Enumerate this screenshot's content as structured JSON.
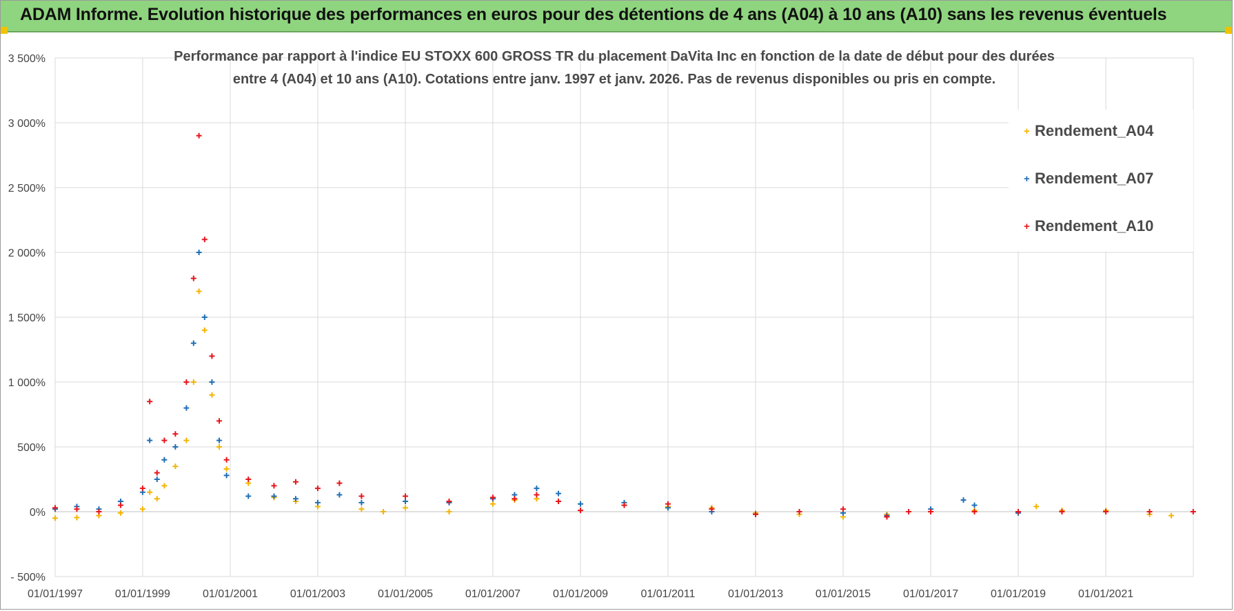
{
  "banner": {
    "title": "ADAM Informe. Evolution historique des performances en euros pour des détentions de 4 ans (A04) à 10 ans (A10) sans les revenus éventuels"
  },
  "chart_data": {
    "type": "scatter",
    "title_line1": "Performance par rapport à l'indice EU STOXX 600 GROSS TR  du placement DaVita Inc en fonction de la date de début pour des durées",
    "title_line2": "entre 4 (A04) et 10 ans (A10).  Cotations entre janv. 1997 et janv. 2026. Pas de revenus disponibles ou pris en compte.",
    "xlabel": "",
    "ylabel": "",
    "x_ticks": [
      "01/01/1997",
      "01/01/1999",
      "01/01/2001",
      "01/01/2003",
      "01/01/2005",
      "01/01/2007",
      "01/01/2009",
      "01/01/2011",
      "01/01/2013",
      "01/01/2015",
      "01/01/2017",
      "01/01/2019",
      "01/01/2021"
    ],
    "x_range": [
      "1997-01-01",
      "2023-01-01"
    ],
    "y_ticks": [
      "3 500%",
      "3 000%",
      "2 500%",
      "2 000%",
      "1 500%",
      "1 000%",
      "500%",
      "0%",
      "- 500%"
    ],
    "ylim": [
      -500,
      3500
    ],
    "grid": true,
    "legend_position": "top-right",
    "marker": "+",
    "series": [
      {
        "name": "Rendement_A04",
        "color": "#f5b400",
        "points": [
          [
            "1997-01-01",
            -50
          ],
          [
            "1997-07-01",
            -45
          ],
          [
            "1998-01-01",
            -30
          ],
          [
            "1998-07-01",
            -10
          ],
          [
            "1999-01-01",
            20
          ],
          [
            "1999-03-01",
            150
          ],
          [
            "1999-05-01",
            100
          ],
          [
            "1999-07-01",
            200
          ],
          [
            "1999-10-01",
            350
          ],
          [
            "2000-01-01",
            550
          ],
          [
            "2000-03-01",
            1000
          ],
          [
            "2000-04-15",
            1700
          ],
          [
            "2000-06-01",
            1400
          ],
          [
            "2000-08-01",
            900
          ],
          [
            "2000-10-01",
            500
          ],
          [
            "2000-12-01",
            330
          ],
          [
            "2001-06-01",
            220
          ],
          [
            "2002-01-01",
            110
          ],
          [
            "2002-07-01",
            80
          ],
          [
            "2003-01-01",
            40
          ],
          [
            "2004-01-01",
            20
          ],
          [
            "2004-07-01",
            0
          ],
          [
            "2005-01-01",
            30
          ],
          [
            "2006-01-01",
            0
          ],
          [
            "2007-01-01",
            60
          ],
          [
            "2007-07-01",
            90
          ],
          [
            "2008-01-01",
            100
          ],
          [
            "2008-07-01",
            80
          ],
          [
            "2009-01-01",
            60
          ],
          [
            "2010-01-01",
            50
          ],
          [
            "2011-01-01",
            40
          ],
          [
            "2012-01-01",
            30
          ],
          [
            "2013-01-01",
            -10
          ],
          [
            "2014-01-01",
            -20
          ],
          [
            "2015-01-01",
            -40
          ],
          [
            "2016-01-01",
            -20
          ],
          [
            "2017-01-01",
            0
          ],
          [
            "2018-01-01",
            10
          ],
          [
            "2019-01-01",
            0
          ],
          [
            "2019-06-01",
            40
          ],
          [
            "2020-01-01",
            10
          ],
          [
            "2021-01-01",
            10
          ],
          [
            "2022-01-01",
            -20
          ],
          [
            "2022-07-01",
            -30
          ]
        ]
      },
      {
        "name": "Rendement_A07",
        "color": "#1f6fb5",
        "points": [
          [
            "1997-01-01",
            20
          ],
          [
            "1997-07-01",
            40
          ],
          [
            "1998-01-01",
            20
          ],
          [
            "1998-07-01",
            80
          ],
          [
            "1999-01-01",
            150
          ],
          [
            "1999-03-01",
            550
          ],
          [
            "1999-05-01",
            250
          ],
          [
            "1999-07-01",
            400
          ],
          [
            "1999-10-01",
            500
          ],
          [
            "2000-01-01",
            800
          ],
          [
            "2000-03-01",
            1300
          ],
          [
            "2000-04-15",
            2000
          ],
          [
            "2000-06-01",
            1500
          ],
          [
            "2000-08-01",
            1000
          ],
          [
            "2000-10-01",
            550
          ],
          [
            "2000-12-01",
            280
          ],
          [
            "2001-06-01",
            120
          ],
          [
            "2002-01-01",
            120
          ],
          [
            "2002-07-01",
            100
          ],
          [
            "2003-01-01",
            70
          ],
          [
            "2003-07-01",
            130
          ],
          [
            "2004-01-01",
            70
          ],
          [
            "2005-01-01",
            80
          ],
          [
            "2006-01-01",
            70
          ],
          [
            "2007-01-01",
            100
          ],
          [
            "2007-07-01",
            130
          ],
          [
            "2008-01-01",
            180
          ],
          [
            "2008-07-01",
            140
          ],
          [
            "2009-01-01",
            60
          ],
          [
            "2010-01-01",
            70
          ],
          [
            "2011-01-01",
            30
          ],
          [
            "2012-01-01",
            0
          ],
          [
            "2013-01-01",
            -20
          ],
          [
            "2014-01-01",
            0
          ],
          [
            "2015-01-01",
            -10
          ],
          [
            "2016-01-01",
            -30
          ],
          [
            "2017-01-01",
            20
          ],
          [
            "2017-10-01",
            90
          ],
          [
            "2018-01-01",
            50
          ],
          [
            "2019-01-01",
            -10
          ],
          [
            "2020-01-01",
            0
          ]
        ]
      },
      {
        "name": "Rendement_A10",
        "color": "#e8151b",
        "points": [
          [
            "1997-01-01",
            30
          ],
          [
            "1997-07-01",
            20
          ],
          [
            "1998-01-01",
            0
          ],
          [
            "1998-07-01",
            50
          ],
          [
            "1999-01-01",
            180
          ],
          [
            "1999-03-01",
            850
          ],
          [
            "1999-05-01",
            300
          ],
          [
            "1999-07-01",
            550
          ],
          [
            "1999-10-01",
            600
          ],
          [
            "2000-01-01",
            1000
          ],
          [
            "2000-03-01",
            1800
          ],
          [
            "2000-04-15",
            2900
          ],
          [
            "2000-06-01",
            2100
          ],
          [
            "2000-08-01",
            1200
          ],
          [
            "2000-10-01",
            700
          ],
          [
            "2000-12-01",
            400
          ],
          [
            "2001-06-01",
            250
          ],
          [
            "2002-01-01",
            200
          ],
          [
            "2002-07-01",
            230
          ],
          [
            "2003-01-01",
            180
          ],
          [
            "2003-07-01",
            220
          ],
          [
            "2004-01-01",
            120
          ],
          [
            "2005-01-01",
            120
          ],
          [
            "2006-01-01",
            80
          ],
          [
            "2007-01-01",
            110
          ],
          [
            "2007-07-01",
            100
          ],
          [
            "2008-01-01",
            130
          ],
          [
            "2008-07-01",
            80
          ],
          [
            "2009-01-01",
            10
          ],
          [
            "2010-01-01",
            50
          ],
          [
            "2011-01-01",
            60
          ],
          [
            "2012-01-01",
            20
          ],
          [
            "2013-01-01",
            -20
          ],
          [
            "2014-01-01",
            0
          ],
          [
            "2015-01-01",
            20
          ],
          [
            "2016-01-01",
            -40
          ],
          [
            "2016-07-01",
            0
          ],
          [
            "2017-01-01",
            0
          ],
          [
            "2018-01-01",
            0
          ],
          [
            "2019-01-01",
            0
          ],
          [
            "2020-01-01",
            0
          ],
          [
            "2021-01-01",
            0
          ],
          [
            "2022-01-01",
            0
          ],
          [
            "2022-12-31",
            0
          ]
        ]
      }
    ]
  }
}
